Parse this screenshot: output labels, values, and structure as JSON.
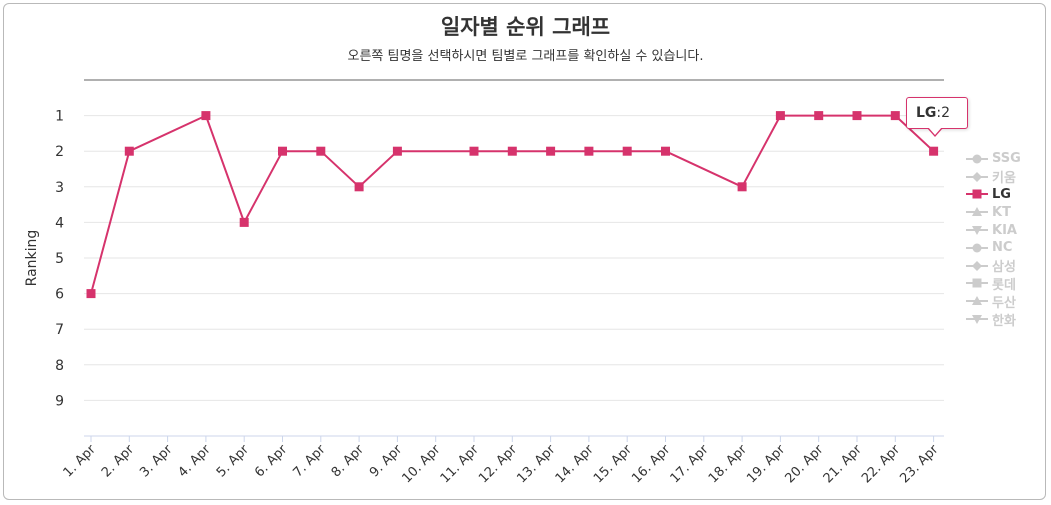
{
  "header": {
    "title": "일자별 순위 그래프",
    "subtitle": "오른쪽 팀명을 선택하시면 팀별로 그래프를 확인하실 수 있습니다."
  },
  "colors": {
    "series": "#d6336c",
    "grid": "#e6e6e6",
    "axis_top": "#b0b0b0",
    "legend_inactive": "#cccccc",
    "legend_active": "#333333"
  },
  "chart_data": {
    "type": "line",
    "title": "일자별 순위 그래프",
    "subtitle": "오른쪽 팀명을 선택하시면 팀별로 그래프를 확인하실 수 있습니다.",
    "ylabel": "Ranking",
    "xlabel": "",
    "y_reversed": true,
    "ylim": [
      0,
      10
    ],
    "yticks": [
      "1",
      "2",
      "3",
      "4",
      "5",
      "6",
      "7",
      "8",
      "9"
    ],
    "grid": true,
    "legend_position": "right",
    "categories": [
      "1. Apr",
      "2. Apr",
      "3. Apr",
      "4. Apr",
      "5. Apr",
      "6. Apr",
      "7. Apr",
      "8. Apr",
      "9. Apr",
      "10. Apr",
      "11. Apr",
      "12. Apr",
      "13. Apr",
      "14. Apr",
      "15. Apr",
      "16. Apr",
      "17. Apr",
      "18. Apr",
      "19. Apr",
      "20. Apr",
      "21. Apr",
      "22. Apr",
      "23. Apr"
    ],
    "series": [
      {
        "name": "LG",
        "values": [
          6,
          2,
          null,
          1,
          4,
          2,
          2,
          3,
          2,
          null,
          2,
          2,
          2,
          2,
          2,
          2,
          null,
          3,
          1,
          1,
          1,
          1,
          2
        ]
      }
    ]
  },
  "legend": [
    {
      "name": "SSG",
      "symbol": "circle",
      "active": false
    },
    {
      "name": "키움",
      "symbol": "diamond",
      "active": false
    },
    {
      "name": "LG",
      "symbol": "square",
      "active": true
    },
    {
      "name": "KT",
      "symbol": "triangle",
      "active": false
    },
    {
      "name": "KIA",
      "symbol": "triangle-down",
      "active": false
    },
    {
      "name": "NC",
      "symbol": "circle",
      "active": false
    },
    {
      "name": "삼성",
      "symbol": "diamond",
      "active": false
    },
    {
      "name": "롯데",
      "symbol": "square",
      "active": false
    },
    {
      "name": "두산",
      "symbol": "triangle",
      "active": false
    },
    {
      "name": "한화",
      "symbol": "triangle-down",
      "active": false
    }
  ],
  "tooltip": {
    "team": "LG",
    "separator": ": ",
    "value": "2"
  }
}
